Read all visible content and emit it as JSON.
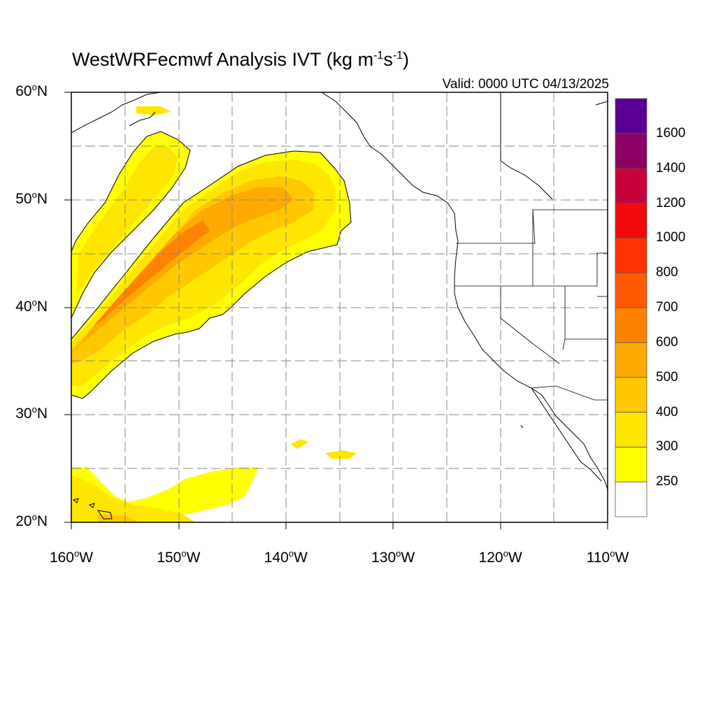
{
  "title": {
    "main": "WestWRFecmwf Analysis IVT (kg m",
    "sup1": "-1",
    "mid": "s",
    "sup2": "-1",
    "end": ")"
  },
  "valid_label": "Valid: 0000 UTC 04/13/2025",
  "map_extent": {
    "lon": [
      -160,
      -110
    ],
    "lat": [
      20,
      60
    ]
  },
  "lat_ticks": [
    {
      "value": 60,
      "text": "60"
    },
    {
      "value": 50,
      "text": "50"
    },
    {
      "value": 40,
      "text": "40"
    },
    {
      "value": 30,
      "text": "30"
    },
    {
      "value": 20,
      "text": "20"
    }
  ],
  "lat_suffix": "N",
  "lon_ticks": [
    {
      "value": -160,
      "text": "160"
    },
    {
      "value": -150,
      "text": "150"
    },
    {
      "value": -140,
      "text": "140"
    },
    {
      "value": -130,
      "text": "130"
    },
    {
      "value": -120,
      "text": "120"
    },
    {
      "value": -110,
      "text": "110"
    }
  ],
  "lon_suffix": "W",
  "gridlines": {
    "lon_step": 5,
    "lat_step": 5,
    "style": "dashed"
  },
  "colorbar": {
    "colors": [
      "#ffffff",
      "#ffff00",
      "#ffe600",
      "#ffc800",
      "#ffaa00",
      "#ff8200",
      "#ff5a00",
      "#ff3200",
      "#f00a0a",
      "#c8003c",
      "#8c0064",
      "#5a0096"
    ],
    "labels": [
      "250",
      "300",
      "400",
      "500",
      "600",
      "700",
      "800",
      "1000",
      "1200",
      "1400",
      "1600"
    ]
  },
  "ivt_colors": {
    "c250": "#ffff00",
    "c300": "#ffe600",
    "c400": "#ffc800",
    "c500": "#ffaa00",
    "c600": "#ff8200"
  }
}
